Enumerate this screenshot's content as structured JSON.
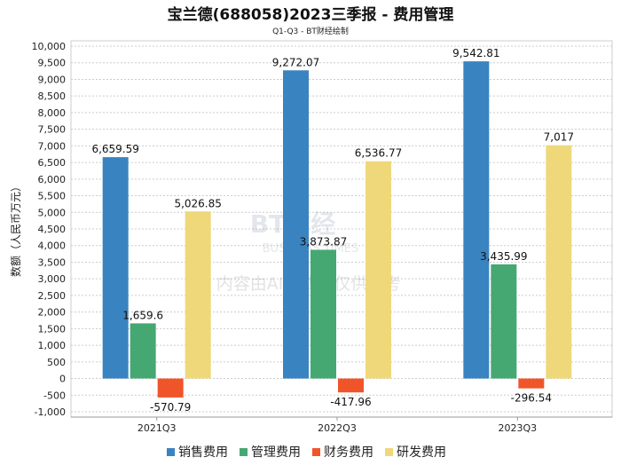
{
  "chart_data": {
    "type": "bar",
    "title": "宝兰德(688058)2023三季报 - 费用管理",
    "subtitle": "Q1-Q3 - BT财经绘制",
    "xlabel": "",
    "ylabel": "数额（人民币万元）",
    "ylim": [
      -1000,
      10000
    ],
    "ytick_step": 500,
    "grid": true,
    "legend_position": "bottom",
    "categories": [
      "2021Q3",
      "2022Q3",
      "2023Q3"
    ],
    "series": [
      {
        "name": "销售费用",
        "color": "#3a83c1",
        "values": [
          6659.59,
          9272.07,
          9542.81
        ],
        "labels": [
          "6,659.59",
          "9,272.07",
          "9,542.81"
        ]
      },
      {
        "name": "管理费用",
        "color": "#45a872",
        "values": [
          1659.6,
          3873.87,
          3435.99
        ],
        "labels": [
          "1,659.6",
          "3,873.87",
          "3,435.99"
        ]
      },
      {
        "name": "财务费用",
        "color": "#f0552a",
        "values": [
          -570.79,
          -417.96,
          -296.54
        ],
        "labels": [
          "-570.79",
          "-417.96",
          "-296.54"
        ]
      },
      {
        "name": "研发费用",
        "color": "#efd87a",
        "values": [
          5026.85,
          6536.77,
          7017
        ],
        "labels": [
          "5,026.85",
          "6,536.77",
          "7,017"
        ]
      }
    ],
    "watermark": {
      "brand": "BT财经",
      "brand_en": "BUSINESS TIMES",
      "notice": "内容由AI生成，仅供参考"
    }
  }
}
